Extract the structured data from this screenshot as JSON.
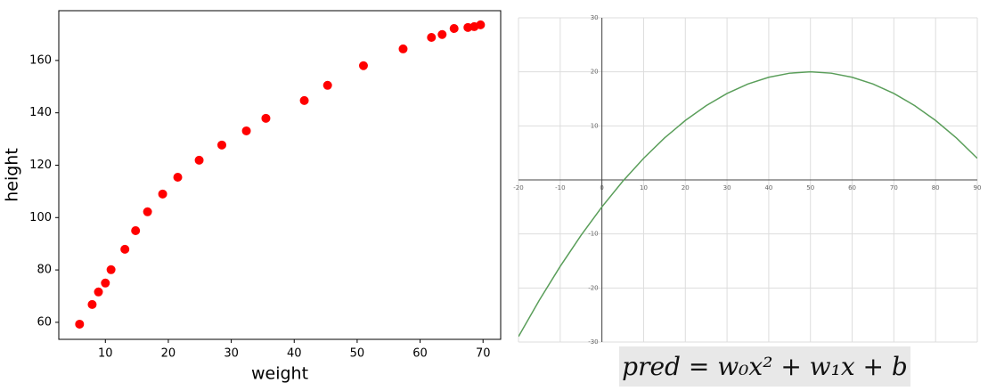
{
  "chart_data": [
    {
      "type": "scatter",
      "xlabel": "weight",
      "ylabel": "height",
      "color": "#ff0000",
      "x": [
        5.9,
        7.9,
        8.9,
        10,
        10.9,
        13.1,
        14.8,
        16.7,
        19.1,
        21.5,
        24.9,
        28.5,
        32.4,
        35.5,
        41.6,
        45.3,
        51,
        57.3,
        61.8,
        63.5,
        65.4,
        67.6,
        68.6,
        69.6
      ],
      "values": [
        59.3,
        66.8,
        71.6,
        75,
        80.1,
        87.9,
        95,
        102.2,
        109,
        115.4,
        121.9,
        127.7,
        133.1,
        137.9,
        144.7,
        150.5,
        158,
        164.4,
        168.8,
        169.9,
        172.2,
        172.6,
        172.9,
        173.6
      ],
      "xlim": [
        2.6,
        72.8
      ],
      "ylim": [
        53.5,
        179
      ],
      "xticks": [
        10,
        20,
        30,
        40,
        50,
        60,
        70
      ],
      "yticks": [
        60,
        80,
        100,
        120,
        140,
        160
      ]
    },
    {
      "type": "line",
      "color": "#5a9e5a",
      "grid": true,
      "x": [
        -20,
        -15,
        -10,
        -5,
        0,
        5,
        10,
        15,
        20,
        25,
        30,
        35,
        40,
        45,
        50,
        55,
        60,
        65,
        70,
        75,
        80,
        85,
        90
      ],
      "values": [
        -29,
        -22.25,
        -16,
        -10.25,
        -5,
        -0.25,
        4,
        7.75,
        11,
        13.75,
        16,
        17.75,
        19,
        19.75,
        20,
        19.75,
        19,
        17.75,
        16,
        13.75,
        11,
        7.75,
        4
      ],
      "xlim": [
        -20,
        90
      ],
      "ylim": [
        -30,
        30
      ],
      "xticks": [
        -20,
        -10,
        0,
        10,
        20,
        30,
        40,
        50,
        60,
        70,
        80,
        90
      ],
      "yticks": [
        -30,
        -20,
        -10,
        10,
        20,
        30
      ]
    }
  ],
  "formula": "pred = w₀x² + w₁x + b"
}
